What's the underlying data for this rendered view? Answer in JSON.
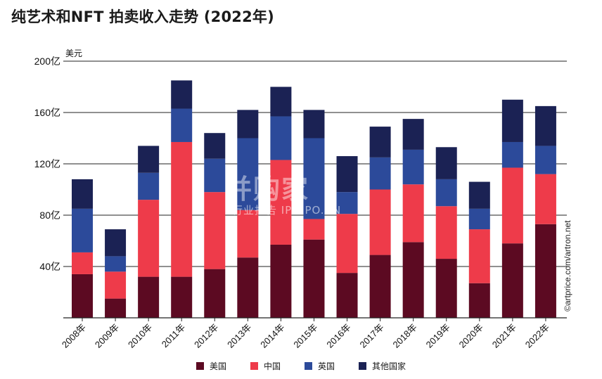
{
  "title": "纯艺术和NFT 拍卖收入走势 (2022年)",
  "watermark": {
    "main": "并购家",
    "sub": "行业报告 IPOIPO.CN"
  },
  "credit": "©artprice.com/artron.net",
  "colors": {
    "us": "#5c0a22",
    "china": "#ee3b4a",
    "uk": "#2c4a9a",
    "other": "#1b2254"
  },
  "chart_data": {
    "type": "bar",
    "stacked": true,
    "unit_label": "美元",
    "categories": [
      "2008年",
      "2009年",
      "2010年",
      "2011年",
      "2012年",
      "2013年",
      "2014年",
      "2015年",
      "2016年",
      "2017年",
      "2018年",
      "2019年",
      "2020年",
      "2021年",
      "2022年"
    ],
    "y_ticks": [
      "40亿",
      "80亿",
      "120亿",
      "160亿",
      "200亿"
    ],
    "y_tick_values": [
      40,
      80,
      120,
      160,
      200
    ],
    "ylim": [
      0,
      200
    ],
    "series": [
      {
        "name": "美国",
        "color_key": "us",
        "values": [
          34,
          15,
          32,
          32,
          38,
          47,
          57,
          61,
          35,
          49,
          59,
          46,
          27,
          58,
          73
        ]
      },
      {
        "name": "中国",
        "color_key": "china",
        "values": [
          17,
          21,
          60,
          105,
          60,
          37,
          66,
          16,
          46,
          51,
          45,
          41,
          42,
          59,
          39
        ]
      },
      {
        "name": "英国",
        "color_key": "uk",
        "values": [
          34,
          12,
          21,
          26,
          26,
          56,
          34,
          63,
          17,
          25,
          27,
          21,
          16,
          20,
          22
        ]
      },
      {
        "name": "其他国家",
        "color_key": "other",
        "values": [
          23,
          21,
          21,
          22,
          20,
          22,
          23,
          22,
          28,
          24,
          24,
          25,
          21,
          33,
          31
        ]
      }
    ],
    "legend": "bottom-center",
    "grid": true
  }
}
